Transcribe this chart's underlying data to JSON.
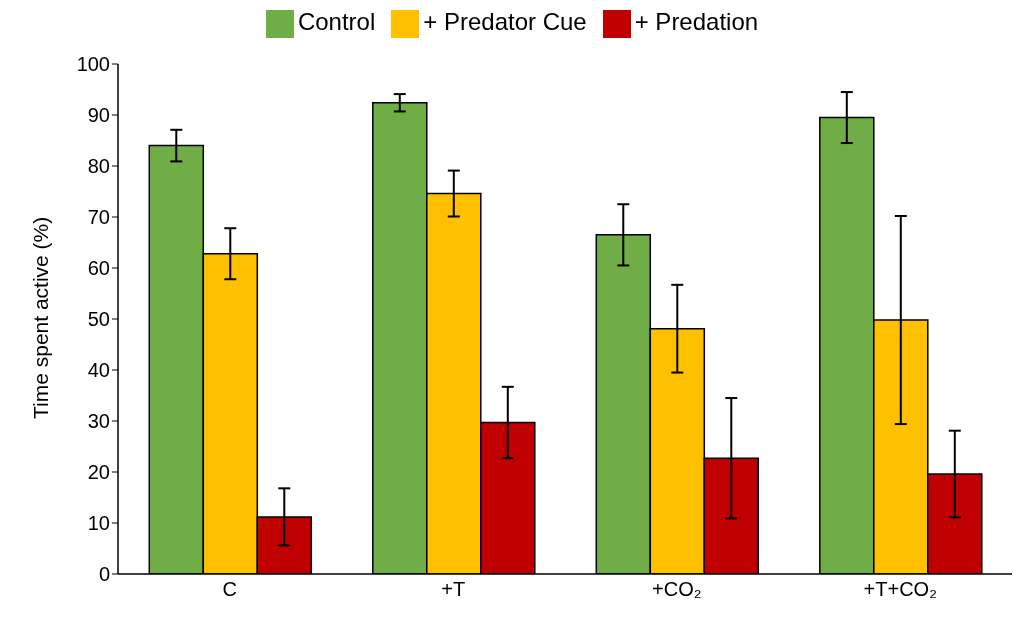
{
  "chart_data": {
    "type": "bar",
    "ylabel": "Time spent active (%)",
    "categories": [
      "C",
      "+T",
      "+CO₂",
      "+T+CO₂"
    ],
    "series": [
      {
        "name": "Control",
        "color": "#70ad47",
        "values": [
          84,
          92.4,
          66.5,
          89.5
        ],
        "errors": [
          3.1,
          1.7,
          6,
          5
        ]
      },
      {
        "name": "+ Predator Cue",
        "color": "#ffc000",
        "values": [
          62.8,
          74.6,
          48.1,
          49.8
        ],
        "errors": [
          5,
          4.5,
          8.6,
          20.4
        ]
      },
      {
        "name": "+ Predation",
        "color": "#c00000",
        "values": [
          11.2,
          29.7,
          22.7,
          19.6
        ],
        "errors": [
          5.6,
          7,
          11.8,
          8.5
        ]
      }
    ],
    "ylim": [
      0,
      100
    ],
    "yticks": [
      0,
      10,
      20,
      30,
      40,
      50,
      60,
      70,
      80,
      90,
      100
    ],
    "grid": false,
    "legend": "top"
  }
}
